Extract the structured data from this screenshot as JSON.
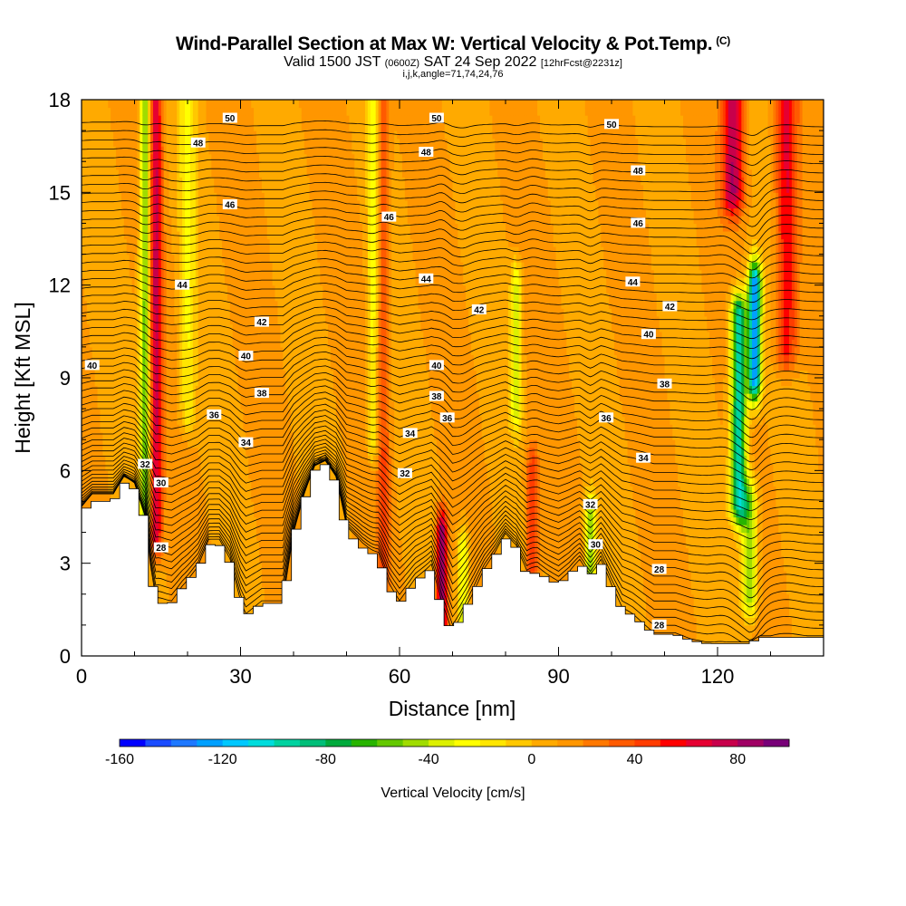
{
  "title": {
    "main": "Wind-Parallel Section at Max W: Vertical Velocity & Pot.Temp.",
    "copyright": "(C)",
    "valid_prefix": "Valid 1500 JST",
    "valid_z": "(0600Z)",
    "valid_date": "SAT 24 Sep 2022",
    "forecast": "[12hrFcst@2231z]",
    "indices": "i,j,k,angle=71,74,24,76"
  },
  "chart_data": {
    "type": "heatmap",
    "xlabel": "Distance [nm]",
    "ylabel": "Height [Kft MSL]",
    "xlim": [
      0,
      140
    ],
    "ylim": [
      0,
      18
    ],
    "x_ticks": [
      0,
      30,
      60,
      90,
      120
    ],
    "y_ticks": [
      0,
      3,
      6,
      9,
      12,
      15,
      18
    ],
    "colorbar": {
      "label": "Vertical Velocity [cm/s]",
      "min": -160,
      "max": 100,
      "step": 10,
      "ticks": [
        -160,
        -120,
        -80,
        -40,
        0,
        40,
        80
      ],
      "colors": [
        "#0000ff",
        "#1a4cff",
        "#1e78ff",
        "#00a0ff",
        "#00c8ff",
        "#00dcdc",
        "#00d2a0",
        "#00be78",
        "#00aa3c",
        "#28b400",
        "#64c800",
        "#a0dc00",
        "#dcf000",
        "#ffff00",
        "#ffe600",
        "#ffc800",
        "#ffaa00",
        "#ff9600",
        "#ff7800",
        "#ff5a00",
        "#ff3c00",
        "#ff0000",
        "#e60032",
        "#c8004b",
        "#a00064",
        "#780078"
      ]
    },
    "terrain_kft": [
      [
        0,
        4.6
      ],
      [
        2,
        5.0
      ],
      [
        6,
        5.0
      ],
      [
        8,
        5.6
      ],
      [
        10,
        5.4
      ],
      [
        12,
        4.4
      ],
      [
        13,
        2.8
      ],
      [
        14,
        1.7
      ],
      [
        17,
        1.7
      ],
      [
        19,
        2.2
      ],
      [
        22,
        2.8
      ],
      [
        24,
        3.6
      ],
      [
        26,
        3.6
      ],
      [
        28,
        3.0
      ],
      [
        30,
        1.7
      ],
      [
        31,
        1.3
      ],
      [
        34,
        1.7
      ],
      [
        38,
        1.7
      ],
      [
        40,
        3.8
      ],
      [
        42,
        5.0
      ],
      [
        44,
        6.0
      ],
      [
        46,
        6.2
      ],
      [
        48,
        5.6
      ],
      [
        50,
        4.0
      ],
      [
        53,
        3.5
      ],
      [
        56,
        3.2
      ],
      [
        58,
        2.2
      ],
      [
        60,
        1.7
      ],
      [
        63,
        2.4
      ],
      [
        66,
        2.8
      ],
      [
        68,
        1.5
      ],
      [
        70,
        0.7
      ],
      [
        72,
        1.4
      ],
      [
        74,
        2.0
      ],
      [
        76,
        2.7
      ],
      [
        78,
        3.2
      ],
      [
        80,
        3.8
      ],
      [
        82,
        3.5
      ],
      [
        84,
        2.6
      ],
      [
        86,
        2.7
      ],
      [
        88,
        2.5
      ],
      [
        90,
        2.3
      ],
      [
        92,
        2.6
      ],
      [
        94,
        3.0
      ],
      [
        96,
        2.6
      ],
      [
        98,
        3.0
      ],
      [
        100,
        2.2
      ],
      [
        102,
        1.5
      ],
      [
        104,
        1.3
      ],
      [
        106,
        1.0
      ],
      [
        108,
        0.7
      ],
      [
        112,
        0.7
      ],
      [
        115,
        0.5
      ],
      [
        118,
        0.4
      ],
      [
        120,
        0.4
      ],
      [
        126,
        0.4
      ],
      [
        128,
        0.6
      ],
      [
        134,
        0.6
      ],
      [
        140,
        0.6
      ]
    ],
    "w_features": [
      {
        "x": 12,
        "w_cms": -70,
        "sigma_nm": 1.0,
        "zmin": 5,
        "zmax": 18
      },
      {
        "x": 14,
        "w_cms": 60,
        "sigma_nm": 1.2,
        "zmin": 4,
        "zmax": 18
      },
      {
        "x": 20,
        "w_cms": -30,
        "sigma_nm": 1.5,
        "zmin": 8,
        "zmax": 18
      },
      {
        "x": 55,
        "w_cms": -35,
        "sigma_nm": 1.0,
        "zmin": 7,
        "zmax": 18
      },
      {
        "x": 57,
        "w_cms": 30,
        "sigma_nm": 1.2,
        "zmin": 3,
        "zmax": 18
      },
      {
        "x": 68,
        "w_cms": 80,
        "sigma_nm": 1.0,
        "zmin": 1,
        "zmax": 4
      },
      {
        "x": 72,
        "w_cms": -45,
        "sigma_nm": 1.0,
        "zmin": 1,
        "zmax": 3.5
      },
      {
        "x": 82,
        "w_cms": -45,
        "sigma_nm": 1.0,
        "zmin": 8,
        "zmax": 12
      },
      {
        "x": 85,
        "w_cms": 40,
        "sigma_nm": 1.2,
        "zmin": 3,
        "zmax": 6
      },
      {
        "x": 96,
        "w_cms": -60,
        "sigma_nm": 1.0,
        "zmin": 2.5,
        "zmax": 4.5
      },
      {
        "x": 124,
        "w_cms": -110,
        "sigma_nm": 1.5,
        "zmin": 5,
        "zmax": 11
      },
      {
        "x": 127,
        "w_cms": -140,
        "sigma_nm": 1.2,
        "zmin": 9,
        "zmax": 12
      },
      {
        "x": 126,
        "w_cms": -60,
        "sigma_nm": 1.5,
        "zmin": 2,
        "zmax": 5
      },
      {
        "x": 123,
        "w_cms": 70,
        "sigma_nm": 2.0,
        "zmin": 15,
        "zmax": 18
      },
      {
        "x": 133,
        "w_cms": 50,
        "sigma_nm": 2.0,
        "zmin": 10,
        "zmax": 18
      }
    ],
    "theta_contour_labels": [
      {
        "text": "50",
        "x": 28,
        "y": 17.4
      },
      {
        "text": "50",
        "x": 67,
        "y": 17.4
      },
      {
        "text": "50",
        "x": 100,
        "y": 17.2
      },
      {
        "text": "48",
        "x": 22,
        "y": 16.6
      },
      {
        "text": "48",
        "x": 65,
        "y": 16.3
      },
      {
        "text": "48",
        "x": 105,
        "y": 15.7
      },
      {
        "text": "46",
        "x": 28,
        "y": 14.6
      },
      {
        "text": "46",
        "x": 58,
        "y": 14.2
      },
      {
        "text": "46",
        "x": 105,
        "y": 14.0
      },
      {
        "text": "44",
        "x": 19,
        "y": 12.0
      },
      {
        "text": "44",
        "x": 65,
        "y": 12.2
      },
      {
        "text": "44",
        "x": 104,
        "y": 12.1
      },
      {
        "text": "42",
        "x": 34,
        "y": 10.8
      },
      {
        "text": "42",
        "x": 75,
        "y": 11.2
      },
      {
        "text": "42",
        "x": 111,
        "y": 11.3
      },
      {
        "text": "40",
        "x": 2,
        "y": 9.4
      },
      {
        "text": "40",
        "x": 31,
        "y": 9.7
      },
      {
        "text": "40",
        "x": 67,
        "y": 9.4
      },
      {
        "text": "40",
        "x": 107,
        "y": 10.4
      },
      {
        "text": "38",
        "x": 34,
        "y": 8.5
      },
      {
        "text": "38",
        "x": 67,
        "y": 8.4
      },
      {
        "text": "38",
        "x": 110,
        "y": 8.8
      },
      {
        "text": "36",
        "x": 25,
        "y": 7.8
      },
      {
        "text": "36",
        "x": 69,
        "y": 7.7
      },
      {
        "text": "36",
        "x": 99,
        "y": 7.7
      },
      {
        "text": "34",
        "x": 31,
        "y": 6.9
      },
      {
        "text": "34",
        "x": 62,
        "y": 7.2
      },
      {
        "text": "34",
        "x": 106,
        "y": 6.4
      },
      {
        "text": "32",
        "x": 12,
        "y": 6.2
      },
      {
        "text": "32",
        "x": 61,
        "y": 5.9
      },
      {
        "text": "32",
        "x": 96,
        "y": 4.9
      },
      {
        "text": "30",
        "x": 15,
        "y": 5.6
      },
      {
        "text": "30",
        "x": 97,
        "y": 3.6
      },
      {
        "text": "28",
        "x": 15,
        "y": 3.5
      },
      {
        "text": "28",
        "x": 109,
        "y": 2.8
      },
      {
        "text": "28",
        "x": 109,
        "y": 1.0
      }
    ]
  }
}
